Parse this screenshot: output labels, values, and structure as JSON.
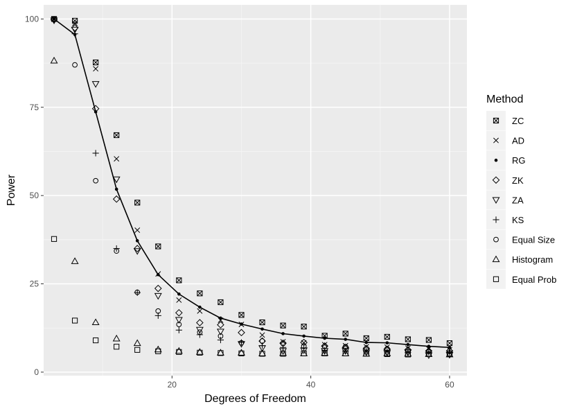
{
  "colors": {
    "panel_background": "#EBEBEB",
    "grid_major": "#FFFFFF",
    "grid_minor": "#F5F5F5",
    "marker": "#000000",
    "legend_key_background": "#F2F2F2"
  },
  "chart_data": {
    "type": "scatter",
    "title": "",
    "xlabel": "Degrees of Freedom",
    "ylabel": "Power",
    "xlim": [
      1.5,
      62.5
    ],
    "ylim": [
      -1,
      104
    ],
    "x_ticks": [
      20,
      40,
      60
    ],
    "y_ticks": [
      0,
      25,
      50,
      75,
      100
    ],
    "grid": true,
    "legend": {
      "title": "Method",
      "position": "right",
      "entries": [
        {
          "label": "ZC",
          "marker": "square-cross"
        },
        {
          "label": "AD",
          "marker": "cross"
        },
        {
          "label": "RG",
          "marker": "dot"
        },
        {
          "label": "ZK",
          "marker": "diamond"
        },
        {
          "label": "ZA",
          "marker": "triangle-down"
        },
        {
          "label": "KS",
          "marker": "plus"
        },
        {
          "label": "Equal Size",
          "marker": "circle"
        },
        {
          "label": "Histogram",
          "marker": "triangle-up"
        },
        {
          "label": "Equal Prob",
          "marker": "square"
        }
      ]
    },
    "x": [
      3,
      6,
      9,
      12,
      15,
      18,
      21,
      24,
      27,
      30,
      33,
      36,
      39,
      42,
      45,
      48,
      51,
      54,
      57,
      60
    ],
    "series": [
      {
        "name": "ZC",
        "marker": "square-cross",
        "values": [
          100,
          99.5,
          87.7,
          67.1,
          48.0,
          35.6,
          26.0,
          22.3,
          19.8,
          16.2,
          14.1,
          13.2,
          12.9,
          10.3,
          10.9,
          9.6,
          10.0,
          9.3,
          9.1,
          8.2
        ]
      },
      {
        "name": "AD",
        "marker": "cross",
        "values": [
          100,
          98.8,
          85.9,
          60.4,
          40.2,
          27.8,
          20.4,
          17.3,
          14.7,
          13.5,
          10.5,
          8.6,
          8.3,
          7.8,
          7.5,
          7.2,
          7.1,
          6.8,
          6.6,
          6.3
        ]
      },
      {
        "name": "RG",
        "marker": "dot",
        "values": [
          100,
          95.6,
          73.7,
          51.8,
          37.2,
          27.6,
          22.1,
          18.4,
          15.3,
          13.6,
          12.2,
          10.9,
          10.2,
          9.6,
          9.3,
          8.4,
          8.3,
          7.8,
          7.3,
          7.0
        ]
      },
      {
        "name": "ZK",
        "marker": "diamond",
        "values": [
          99.8,
          97.5,
          74.6,
          49.0,
          35.0,
          23.7,
          16.8,
          14.0,
          13.4,
          11.2,
          8.8,
          8.2,
          8.4,
          7.4,
          7.0,
          6.7,
          6.5,
          6.3,
          6.0,
          6.0
        ]
      },
      {
        "name": "ZA",
        "marker": "triangle-down",
        "values": [
          99.6,
          97.0,
          81.6,
          54.6,
          34.3,
          21.6,
          14.8,
          12.0,
          11.5,
          8.0,
          6.8,
          6.0,
          6.2,
          6.0,
          6.0,
          5.6,
          5.5,
          5.6,
          4.8,
          4.9
        ]
      },
      {
        "name": "KS",
        "marker": "plus",
        "values": [
          99.7,
          95.8,
          62.0,
          35.0,
          22.5,
          16.0,
          11.9,
          10.6,
          9.1,
          8.4,
          7.5,
          7.0,
          6.8,
          6.2,
          6.0,
          5.9,
          5.8,
          5.6,
          5.5,
          5.4
        ]
      },
      {
        "name": "Equal Size",
        "marker": "circle",
        "values": [
          100,
          87.0,
          54.2,
          34.3,
          22.6,
          17.3,
          13.5,
          11.3,
          10.2,
          8.3,
          8.8,
          8.1,
          7.3,
          7.3,
          7.2,
          6.7,
          6.6,
          6.3,
          5.9,
          6.0
        ]
      },
      {
        "name": "Histogram",
        "marker": "triangle-up",
        "values": [
          88.2,
          31.4,
          14.1,
          9.5,
          8.2,
          6.4,
          6.0,
          5.7,
          5.5,
          5.5,
          5.3,
          5.4,
          5.3,
          5.4,
          5.3,
          5.2,
          5.3,
          5.2,
          5.1,
          5.0
        ]
      },
      {
        "name": "Equal Prob",
        "marker": "square",
        "values": [
          37.7,
          14.6,
          9.0,
          7.2,
          6.3,
          5.9,
          5.7,
          5.5,
          5.4,
          5.3,
          5.2,
          5.2,
          5.3,
          5.3,
          5.3,
          5.2,
          5.1,
          5.0,
          5.1,
          5.2
        ]
      }
    ],
    "line_series": "RG"
  }
}
